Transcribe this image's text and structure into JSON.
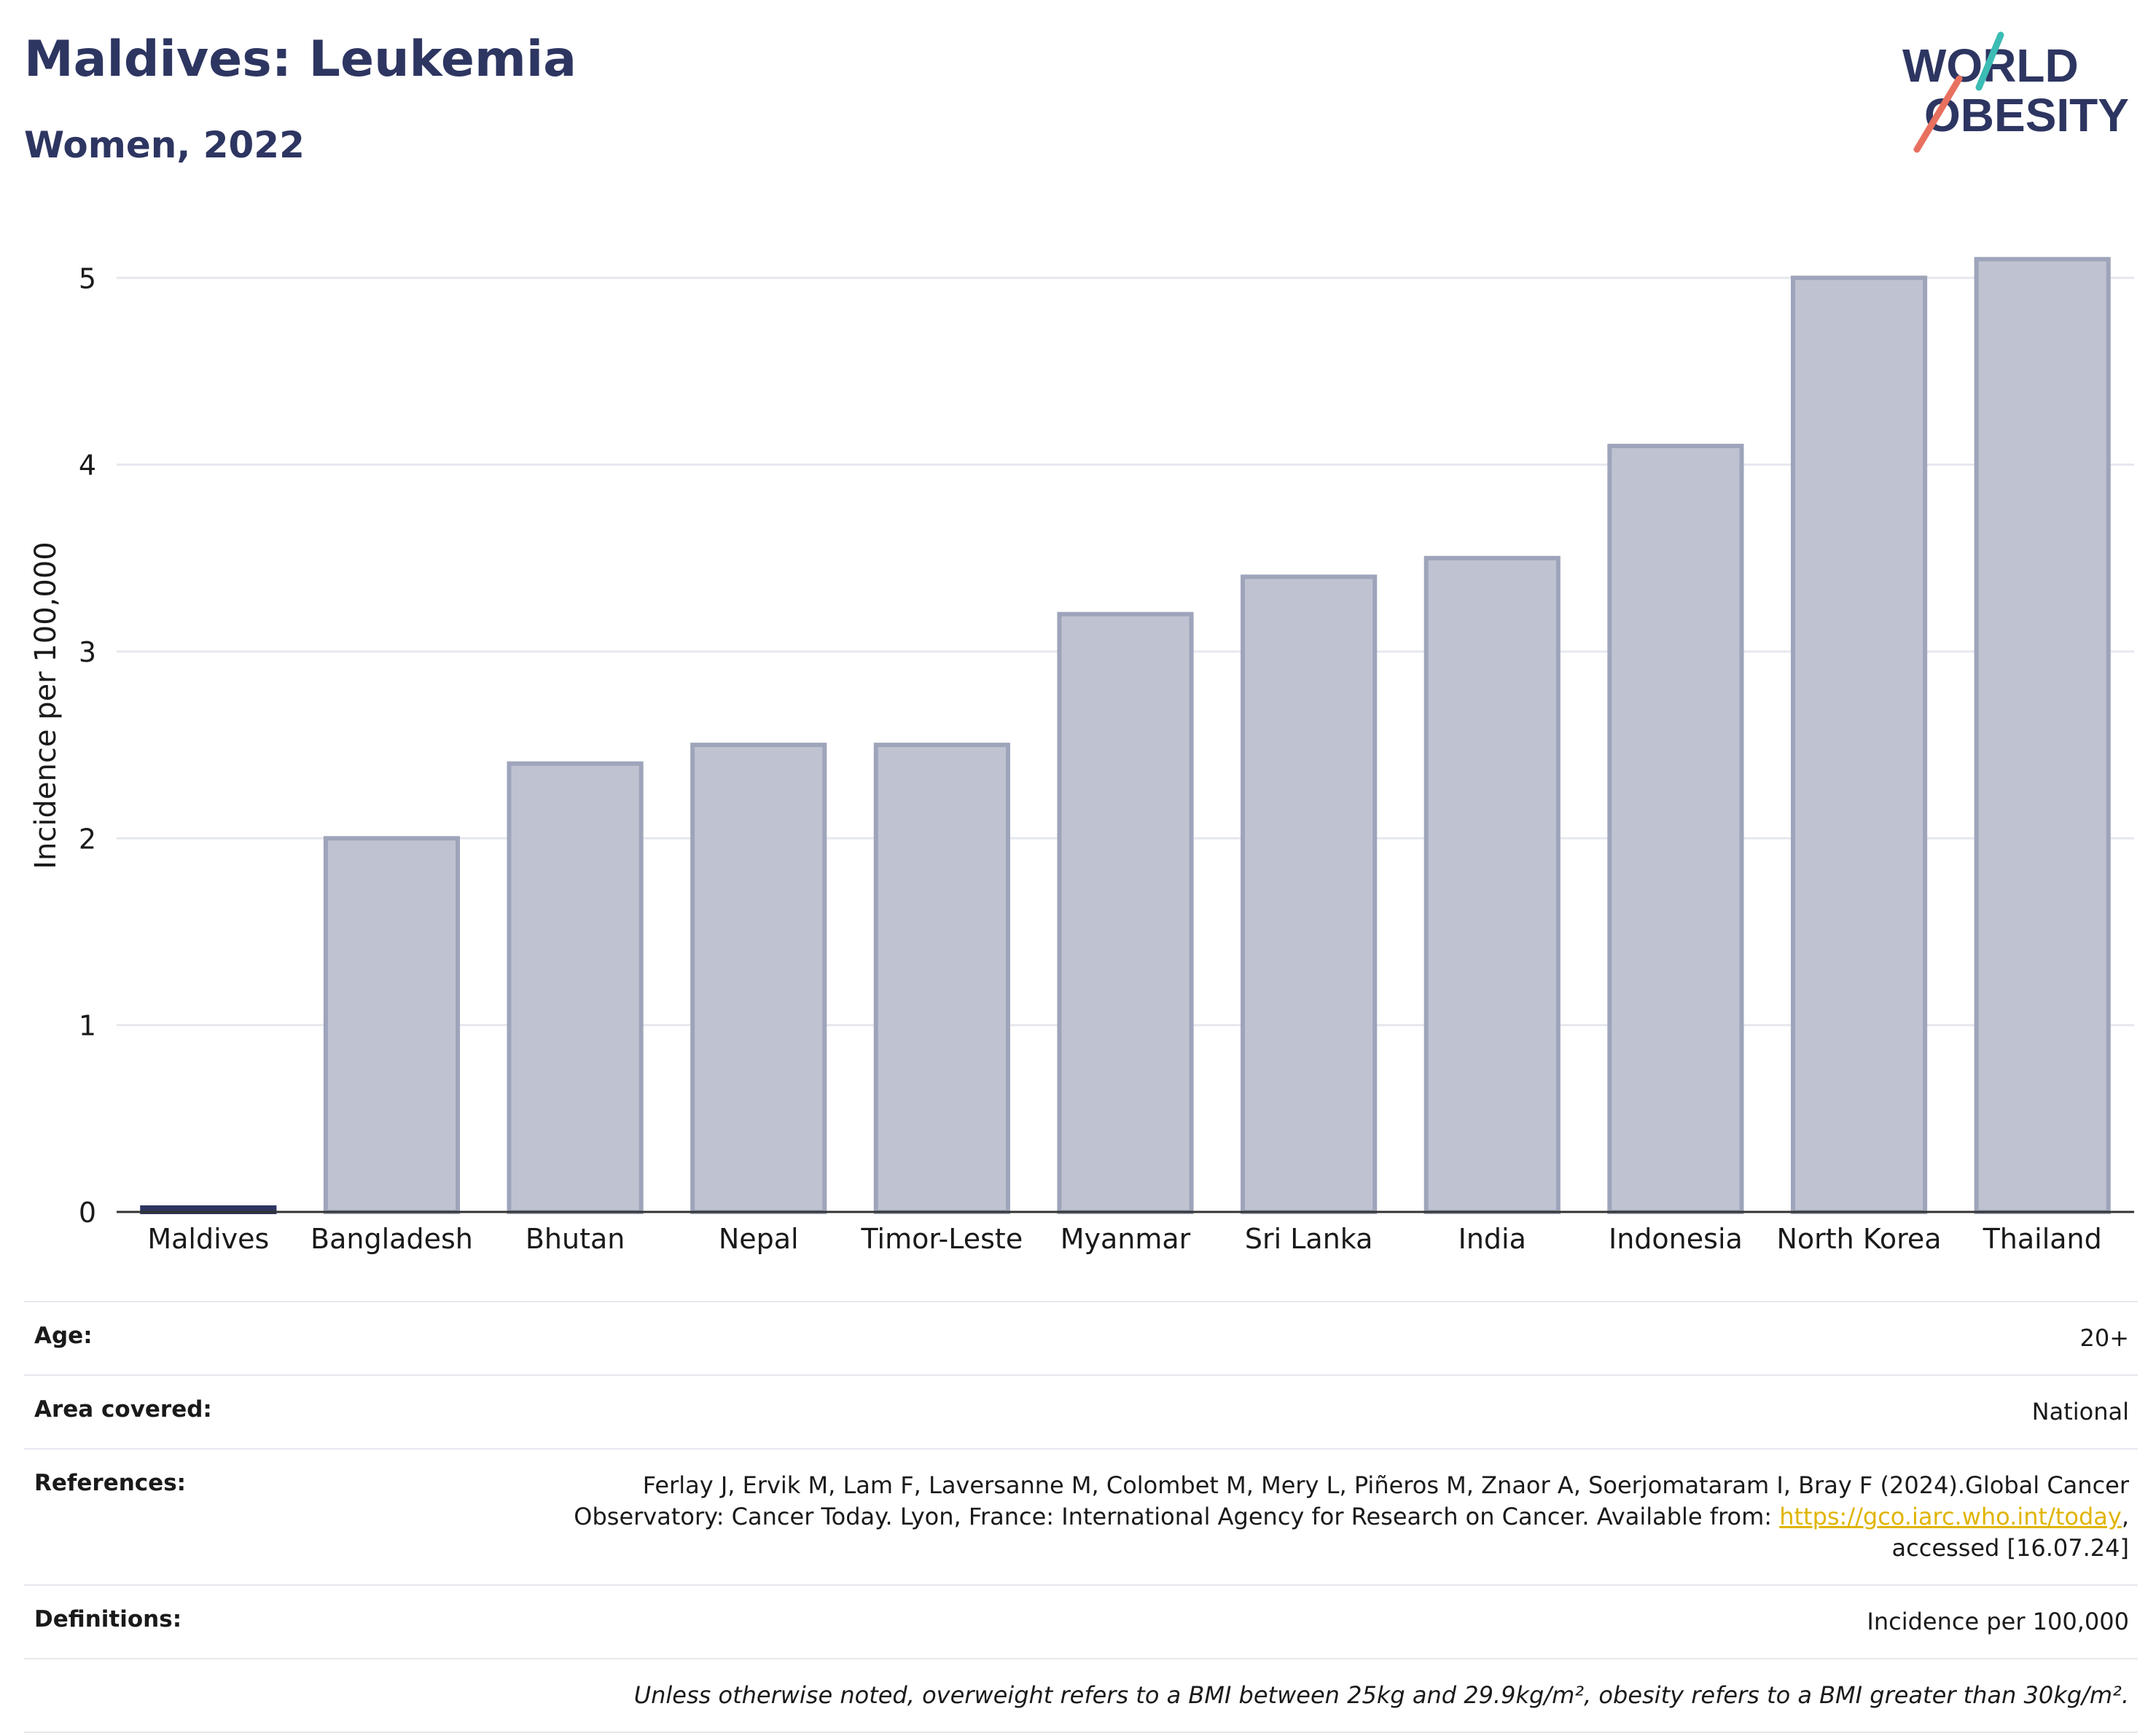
{
  "header": {
    "title": "Maldives: Leukemia",
    "subtitle": "Women, 2022",
    "logo_line1": "WORLD",
    "logo_line2": "OBESITY"
  },
  "chart_data": {
    "type": "bar",
    "ylabel": "Incidence per 100,000",
    "ylim": [
      0,
      5.2
    ],
    "yticks": [
      0,
      1,
      2,
      3,
      4,
      5
    ],
    "grid": true,
    "categories": [
      "Maldives",
      "Bangladesh",
      "Bhutan",
      "Nepal",
      "Timor-Leste",
      "Myanmar",
      "Sri Lanka",
      "India",
      "Indonesia",
      "North Korea",
      "Thailand"
    ],
    "values": [
      0,
      2.0,
      2.4,
      2.5,
      2.5,
      3.2,
      3.4,
      3.5,
      4.1,
      5.0,
      5.1
    ],
    "highlight": "Maldives",
    "colors": {
      "bar": "#bfc3d1",
      "bar_edge": "#9ea4ba",
      "highlight": "#2d3561",
      "grid": "#e6e8ee",
      "axis": "#333333"
    }
  },
  "meta": {
    "age_label": "Age:",
    "age_value": "20+",
    "area_label": "Area covered:",
    "area_value": "National",
    "references_label": "References:",
    "references_text_1": "Ferlay J, Ervik M, Lam F, Laversanne M, Colombet M, Mery L, Piñeros M, Znaor A, Soerjomataram I, Bray F (2024).Global Cancer",
    "references_text_2": "Observatory: Cancer Today. Lyon, France: International Agency for Research on Cancer. Available from:",
    "references_link": "https://gco.iarc.who.int/today",
    "references_text_3": "accessed [16.07.24]",
    "definitions_label": "Definitions:",
    "definitions_value": "Incidence per 100,000",
    "note": "Unless otherwise noted, overweight refers to a BMI between 25kg and 29.9kg/m², obesity refers to a BMI greater than 30kg/m²."
  }
}
